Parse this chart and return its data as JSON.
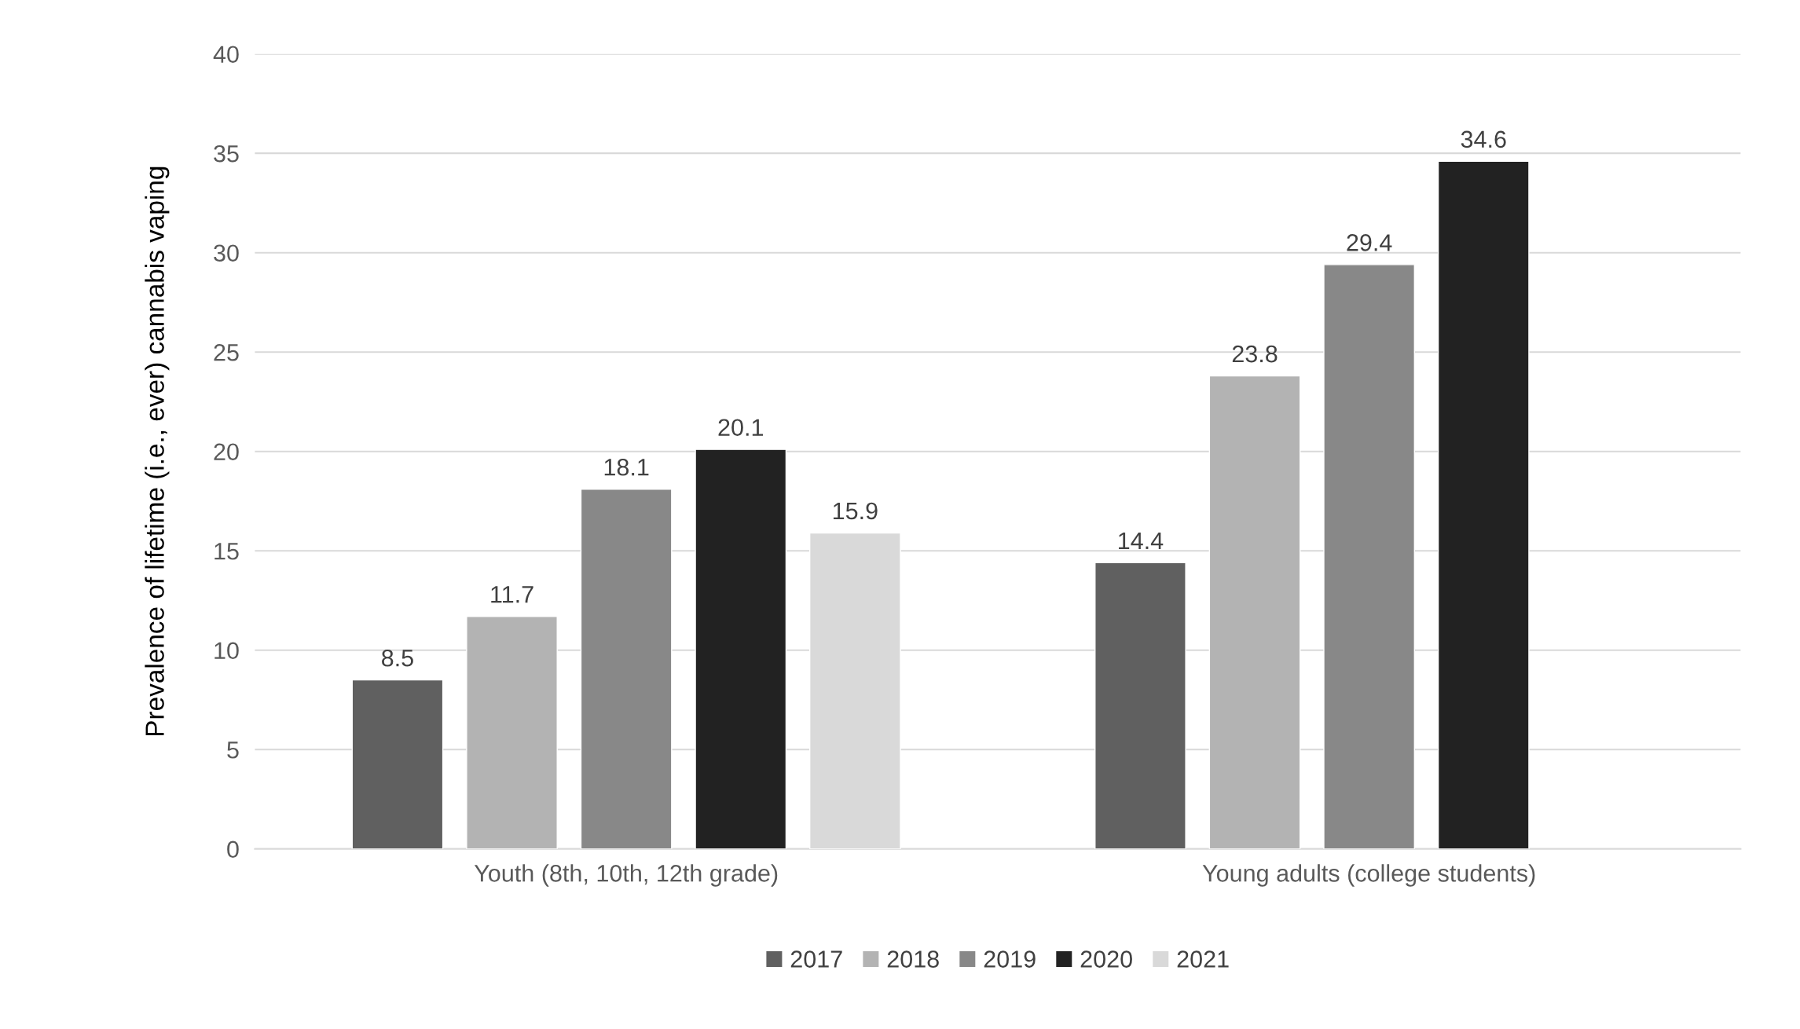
{
  "chart_data": {
    "type": "bar",
    "ylabel": "Prevalence of lifetime (i.e., ever) cannabis vaping",
    "categories": [
      "Youth (8th, 10th, 12th grade)",
      "Young adults (college students)"
    ],
    "series": [
      {
        "name": "2017",
        "color": "#606060",
        "values": [
          8.5,
          14.4
        ]
      },
      {
        "name": "2018",
        "color": "#b3b3b3",
        "values": [
          11.7,
          23.8
        ]
      },
      {
        "name": "2019",
        "color": "#888888",
        "values": [
          18.1,
          29.4
        ]
      },
      {
        "name": "2020",
        "color": "#222222",
        "values": [
          20.1,
          34.6
        ]
      },
      {
        "name": "2021",
        "color": "#d9d9d9",
        "values": [
          15.9,
          null
        ]
      }
    ],
    "ylim": [
      0,
      40
    ],
    "yticks": [
      0,
      5,
      10,
      15,
      20,
      25,
      30,
      35,
      40
    ],
    "grid": "y",
    "legend": "bottom",
    "data_labels": true
  }
}
